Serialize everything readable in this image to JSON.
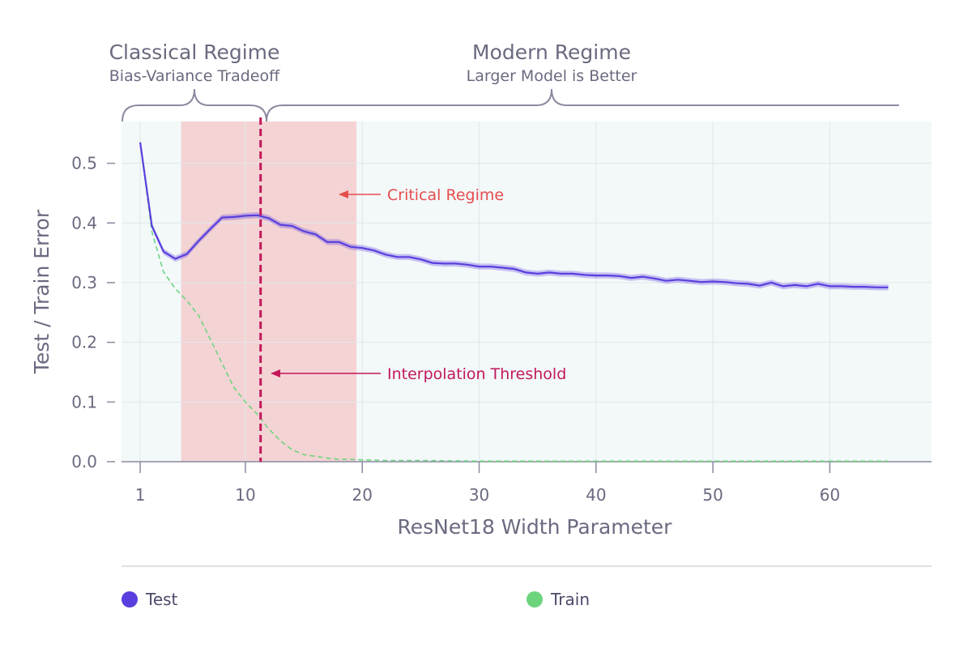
{
  "chart_data": {
    "type": "line",
    "xlabel": "ResNet18 Width Parameter",
    "ylabel": "Test / Train Error",
    "xlim": [
      -0.6,
      68.7
    ],
    "ylim": [
      0,
      0.57
    ],
    "xticks": [
      1,
      10,
      20,
      30,
      40,
      50,
      60
    ],
    "yticks": [
      0.0,
      0.1,
      0.2,
      0.3,
      0.4,
      0.5
    ],
    "ytick_labels": [
      "0.0",
      "0.1",
      "0.2",
      "0.3",
      "0.4",
      "0.5"
    ],
    "grid": true,
    "regimes": [
      {
        "title": "Classical Regime",
        "subtitle": "Bias-Variance Tradeoff",
        "x_start": -0.6,
        "x_end": 11.3
      },
      {
        "title": "Modern Regime",
        "subtitle": "Larger Model is Better",
        "x_start": 11.3,
        "x_end": 65
      }
    ],
    "critical_regime": {
      "label": "Critical Regime",
      "x_start": 4.5,
      "x_end": 19.5,
      "color": "#f4d3d4"
    },
    "interpolation_threshold": {
      "label": "Interpolation Threshold",
      "x": 11.3,
      "color": "#c2185b"
    },
    "series": [
      {
        "name": "Test",
        "color": "#5a3fde",
        "band": 0.005,
        "x": [
          1,
          2,
          3,
          4,
          5,
          6,
          7,
          8,
          9,
          10,
          11,
          12,
          13,
          14,
          15,
          16,
          17,
          18,
          19,
          20,
          21,
          22,
          23,
          24,
          25,
          26,
          27,
          28,
          29,
          30,
          31,
          32,
          33,
          34,
          35,
          36,
          37,
          38,
          39,
          40,
          41,
          42,
          43,
          44,
          45,
          46,
          47,
          48,
          49,
          50,
          51,
          52,
          53,
          54,
          55,
          56,
          57,
          58,
          59,
          60,
          61,
          62,
          63,
          64,
          65
        ],
        "values": [
          0.535,
          0.395,
          0.352,
          0.34,
          0.348,
          0.37,
          0.39,
          0.409,
          0.41,
          0.412,
          0.413,
          0.408,
          0.397,
          0.395,
          0.386,
          0.381,
          0.368,
          0.368,
          0.36,
          0.358,
          0.354,
          0.347,
          0.343,
          0.343,
          0.339,
          0.333,
          0.332,
          0.332,
          0.33,
          0.327,
          0.327,
          0.325,
          0.323,
          0.317,
          0.315,
          0.317,
          0.315,
          0.315,
          0.313,
          0.312,
          0.312,
          0.311,
          0.308,
          0.31,
          0.307,
          0.303,
          0.305,
          0.303,
          0.301,
          0.302,
          0.301,
          0.299,
          0.298,
          0.295,
          0.3,
          0.294,
          0.296,
          0.294,
          0.298,
          0.294,
          0.294,
          0.293,
          0.293,
          0.292,
          0.292
        ]
      },
      {
        "name": "Train",
        "color": "#6dd47e",
        "dashed": true,
        "x": [
          1,
          2,
          3,
          4,
          5,
          6,
          7,
          8,
          9,
          10,
          11,
          12,
          13,
          14,
          15,
          16,
          17,
          18,
          19,
          20,
          22,
          25,
          30,
          35,
          40,
          45,
          50,
          55,
          60,
          65
        ],
        "values": [
          0.535,
          0.385,
          0.318,
          0.29,
          0.27,
          0.245,
          0.205,
          0.165,
          0.125,
          0.1,
          0.08,
          0.055,
          0.035,
          0.02,
          0.012,
          0.009,
          0.006,
          0.004,
          0.004,
          0.003,
          0.002,
          0.002,
          0.001,
          0.001,
          0.001,
          0.001,
          0.001,
          0.001,
          0.001,
          0.001
        ]
      }
    ],
    "legend": [
      {
        "name": "Test",
        "color": "#5a3fde"
      },
      {
        "name": "Train",
        "color": "#6dd47e"
      }
    ]
  }
}
